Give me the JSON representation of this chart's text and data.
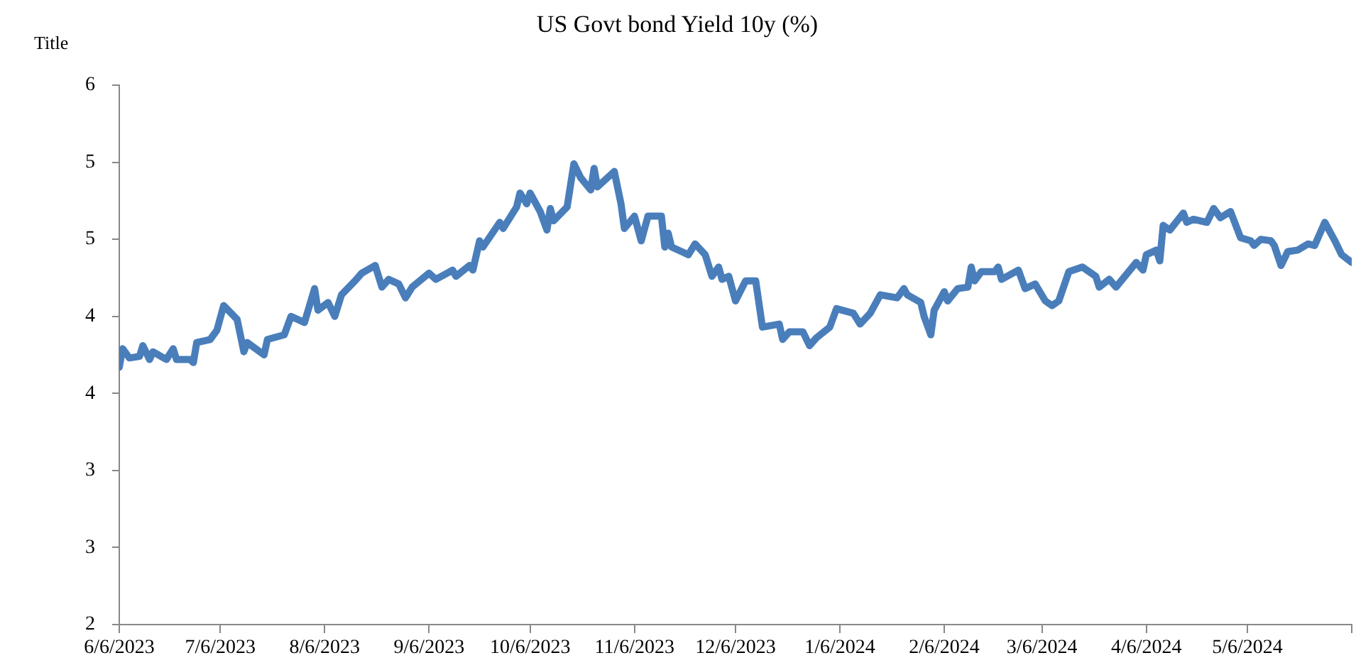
{
  "chart_data": {
    "type": "line",
    "title": "US Govt bond Yield 10y (%)",
    "ylabel": "Title",
    "x": [
      "2023-06-06",
      "2023-06-07",
      "2023-06-09",
      "2023-06-12",
      "2023-06-13",
      "2023-06-15",
      "2023-06-16",
      "2023-06-20",
      "2023-06-22",
      "2023-06-23",
      "2023-06-27",
      "2023-06-28",
      "2023-06-29",
      "2023-07-03",
      "2023-07-05",
      "2023-07-07",
      "2023-07-11",
      "2023-07-13",
      "2023-07-14",
      "2023-07-19",
      "2023-07-20",
      "2023-07-25",
      "2023-07-27",
      "2023-07-31",
      "2023-08-03",
      "2023-08-04",
      "2023-08-07",
      "2023-08-09",
      "2023-08-11",
      "2023-08-15",
      "2023-08-17",
      "2023-08-21",
      "2023-08-23",
      "2023-08-25",
      "2023-08-28",
      "2023-08-30",
      "2023-09-01",
      "2023-09-06",
      "2023-09-08",
      "2023-09-13",
      "2023-09-14",
      "2023-09-18",
      "2023-09-19",
      "2023-09-21",
      "2023-09-22",
      "2023-09-27",
      "2023-09-28",
      "2023-10-02",
      "2023-10-03",
      "2023-10-05",
      "2023-10-06",
      "2023-10-09",
      "2023-10-11",
      "2023-10-12",
      "2023-10-13",
      "2023-10-17",
      "2023-10-19",
      "2023-10-21",
      "2023-10-24",
      "2023-10-25",
      "2023-10-26",
      "2023-10-31",
      "2023-11-02",
      "2023-11-03",
      "2023-11-06",
      "2023-11-08",
      "2023-11-10",
      "2023-11-14",
      "2023-11-15",
      "2023-11-16",
      "2023-11-17",
      "2023-11-20",
      "2023-11-22",
      "2023-11-24",
      "2023-11-27",
      "2023-11-29",
      "2023-12-01",
      "2023-12-02",
      "2023-12-04",
      "2023-12-06",
      "2023-12-09",
      "2023-12-12",
      "2023-12-14",
      "2023-12-19",
      "2023-12-20",
      "2023-12-22",
      "2023-12-26",
      "2023-12-28",
      "2023-12-30",
      "2024-01-03",
      "2024-01-05",
      "2024-01-10",
      "2024-01-12",
      "2024-01-15",
      "2024-01-18",
      "2024-01-23",
      "2024-01-25",
      "2024-01-26",
      "2024-01-30",
      "2024-01-31",
      "2024-02-02",
      "2024-02-03",
      "2024-02-06",
      "2024-02-07",
      "2024-02-10",
      "2024-02-13",
      "2024-02-14",
      "2024-02-15",
      "2024-02-17",
      "2024-02-21",
      "2024-02-22",
      "2024-02-23",
      "2024-02-28",
      "2024-03-01",
      "2024-03-04",
      "2024-03-07",
      "2024-03-09",
      "2024-03-11",
      "2024-03-14",
      "2024-03-18",
      "2024-03-22",
      "2024-03-23",
      "2024-03-26",
      "2024-03-28",
      "2024-04-03",
      "2024-04-05",
      "2024-04-06",
      "2024-04-09",
      "2024-04-10",
      "2024-04-11",
      "2024-04-13",
      "2024-04-17",
      "2024-04-18",
      "2024-04-20",
      "2024-04-24",
      "2024-04-26",
      "2024-04-28",
      "2024-05-01",
      "2024-05-04",
      "2024-05-07",
      "2024-05-08",
      "2024-05-10",
      "2024-05-13",
      "2024-05-14",
      "2024-05-16",
      "2024-05-18",
      "2024-05-21",
      "2024-05-24",
      "2024-05-26",
      "2024-05-29",
      "2024-06-01",
      "2024-06-03",
      "2024-06-06"
    ],
    "series": [
      {
        "color": "#4a7ebb",
        "values": [
          3.67,
          3.79,
          3.73,
          3.74,
          3.81,
          3.72,
          3.77,
          3.72,
          3.79,
          3.72,
          3.72,
          3.7,
          3.83,
          3.85,
          3.91,
          4.07,
          3.98,
          3.77,
          3.83,
          3.75,
          3.85,
          3.88,
          4.0,
          3.96,
          4.18,
          4.04,
          4.09,
          4.0,
          4.14,
          4.23,
          4.28,
          4.33,
          4.19,
          4.24,
          4.21,
          4.12,
          4.19,
          4.28,
          4.24,
          4.3,
          4.26,
          4.33,
          4.3,
          4.49,
          4.45,
          4.61,
          4.57,
          4.71,
          4.8,
          4.73,
          4.8,
          4.68,
          4.56,
          4.7,
          4.62,
          4.71,
          4.99,
          4.9,
          4.82,
          4.96,
          4.84,
          4.94,
          4.73,
          4.57,
          4.65,
          4.49,
          4.65,
          4.65,
          4.45,
          4.54,
          4.45,
          4.42,
          4.4,
          4.47,
          4.4,
          4.26,
          4.32,
          4.24,
          4.26,
          4.1,
          4.23,
          4.23,
          3.93,
          3.95,
          3.85,
          3.9,
          3.9,
          3.81,
          3.86,
          3.93,
          4.05,
          4.02,
          3.95,
          4.02,
          4.14,
          4.12,
          4.18,
          4.14,
          4.09,
          4.0,
          3.88,
          4.04,
          4.16,
          4.1,
          4.18,
          4.19,
          4.32,
          4.23,
          4.29,
          4.29,
          4.32,
          4.24,
          4.3,
          4.18,
          4.21,
          4.1,
          4.07,
          4.1,
          4.29,
          4.32,
          4.26,
          4.19,
          4.24,
          4.19,
          4.35,
          4.3,
          4.4,
          4.43,
          4.36,
          4.59,
          4.56,
          4.67,
          4.61,
          4.63,
          4.61,
          4.7,
          4.64,
          4.68,
          4.51,
          4.49,
          4.46,
          4.5,
          4.49,
          4.46,
          4.33,
          4.42,
          4.43,
          4.47,
          4.46,
          4.61,
          4.49,
          4.4,
          4.35
        ]
      }
    ],
    "xlim": [
      "2023-06-06",
      "2024-06-06"
    ],
    "xticks": [
      {
        "value": "2023-06-06",
        "label": "6/6/2023"
      },
      {
        "value": "2023-07-06",
        "label": "7/6/2023"
      },
      {
        "value": "2023-08-06",
        "label": "8/6/2023"
      },
      {
        "value": "2023-09-06",
        "label": "9/6/2023"
      },
      {
        "value": "2023-10-06",
        "label": "10/6/2023"
      },
      {
        "value": "2023-11-06",
        "label": "11/6/2023"
      },
      {
        "value": "2023-12-06",
        "label": "12/6/2023"
      },
      {
        "value": "2024-01-06",
        "label": "1/6/2024"
      },
      {
        "value": "2024-02-06",
        "label": "2/6/2024"
      },
      {
        "value": "2024-03-06",
        "label": "3/6/2024"
      },
      {
        "value": "2024-04-06",
        "label": "4/6/2024"
      },
      {
        "value": "2024-05-06",
        "label": "5/6/2024"
      },
      {
        "value": "2024-06-06",
        "label": null
      }
    ],
    "ylim": [
      2,
      5.5
    ],
    "yticks": [
      2,
      {
        "value": 2.5,
        "label": "3"
      },
      3,
      {
        "value": 3.5,
        "label": "4"
      },
      4,
      {
        "value": 4.5,
        "label": "5"
      },
      5,
      {
        "value": 5.5,
        "label": "6"
      }
    ],
    "grid": false,
    "legend": false,
    "marker": "none",
    "line_style": "solid"
  }
}
